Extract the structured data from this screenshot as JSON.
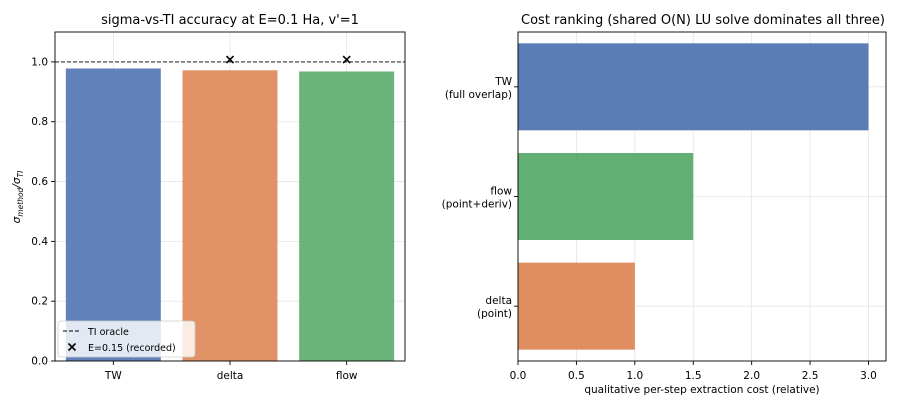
{
  "chart_data": [
    {
      "type": "bar",
      "title": "sigma-vs-TI accuracy at E=0.1 Ha, v'=1",
      "xlabel": "",
      "ylabel": {
        "base": "σ",
        "sub1": "method",
        "sep": "/σ",
        "sub2": "TI"
      },
      "categories": [
        "TW",
        "delta",
        "flow"
      ],
      "values": [
        0.978,
        0.972,
        0.968
      ],
      "colors": [
        "#4c72b0",
        "#dd8452",
        "#55a868"
      ],
      "ylim": [
        0.0,
        1.1
      ],
      "yticks": [
        0.0,
        0.2,
        0.4,
        0.6,
        0.8,
        1.0
      ],
      "yticklabels": [
        "0.0",
        "0.2",
        "0.4",
        "0.6",
        "0.8",
        "1.0"
      ],
      "reference_line": {
        "y": 1.0,
        "label": "TI oracle",
        "style": "dashed"
      },
      "markers": {
        "label": "E=0.15 (recorded)",
        "symbol": "x",
        "points": [
          {
            "category": "delta",
            "value": 1.008
          },
          {
            "category": "flow",
            "value": 1.008
          }
        ]
      },
      "legend": {
        "location": "lower-left",
        "entries": [
          "TI oracle",
          "E=0.15 (recorded)"
        ]
      },
      "grid": true
    },
    {
      "type": "bar",
      "orientation": "horizontal",
      "title": "Cost ranking (shared O(N) LU solve dominates all three)",
      "xlabel": "qualitative per-step extraction cost (relative)",
      "ylabel": "",
      "categories": [
        [
          "delta",
          "(point)"
        ],
        [
          "flow",
          "(point+deriv)"
        ],
        [
          "TW",
          "(full overlap)"
        ]
      ],
      "values": [
        1.0,
        1.5,
        3.0
      ],
      "colors": [
        "#dd8452",
        "#55a868",
        "#4c72b0"
      ],
      "xlim": [
        0.0,
        3.15
      ],
      "xticks": [
        0.0,
        0.5,
        1.0,
        1.5,
        2.0,
        2.5,
        3.0
      ],
      "xticklabels": [
        "0.0",
        "0.5",
        "1.0",
        "1.5",
        "2.0",
        "2.5",
        "3.0"
      ],
      "grid": true
    }
  ]
}
